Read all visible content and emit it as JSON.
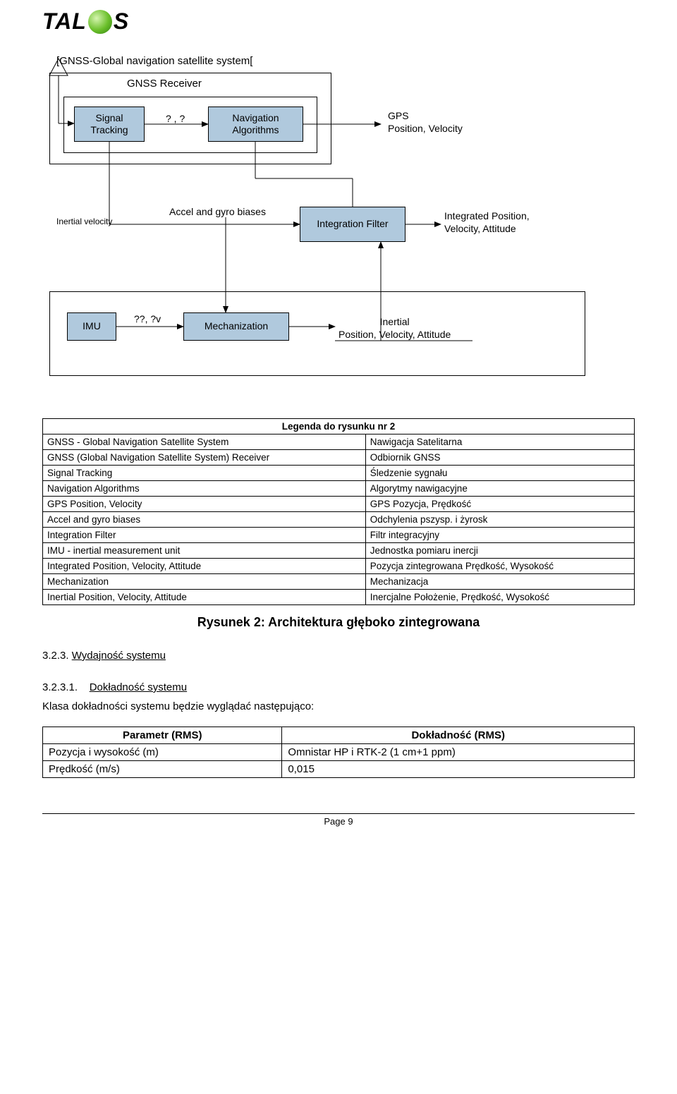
{
  "logo": {
    "left": "TAL",
    "right": "S"
  },
  "diagram": {
    "gnss_header": "[GNSS-Global navigation satellite system[",
    "gnss_receiver": "GNSS Receiver",
    "signal_tracking": "Signal\nTracking",
    "between_arrow_label": "? , ?",
    "nav_alg": "Navigation\nAlgorithms",
    "gps_out": "GPS\nPosition, Velocity",
    "inertial_velocity": "Inertial velocity",
    "accel_gyro": "Accel and gyro biases",
    "integration_filter": "Integration Filter",
    "integrated_out": "Integrated Position,\nVelocity, Attitude",
    "imu": "IMU",
    "imu_label": "??, ?v",
    "mechanization": "Mechanization",
    "inertial_out": "Inertial\nPosition, Velocity, Attitude",
    "colors": {
      "box_fill": "#b0c9dd",
      "border": "#000000",
      "arrow": "#000000",
      "background": "#ffffff"
    }
  },
  "legend": {
    "title": "Legenda do rysunku nr 2",
    "rows": [
      [
        "GNSS - Global Navigation Satellite System",
        "Nawigacja Satelitarna"
      ],
      [
        "GNSS  (Global Navigation Satellite System) Receiver",
        "Odbiornik GNSS"
      ],
      [
        "Signal Tracking",
        "Śledzenie sygnału"
      ],
      [
        "Navigation Algorithms",
        "Algorytmy nawigacyjne"
      ],
      [
        "GPS Position, Velocity",
        "GPS   Pozycja, Prędkość"
      ],
      [
        "Accel and gyro biases",
        "Odchylenia pszysp. i żyrosk"
      ],
      [
        "Integration Filter",
        "Filtr integracyjny"
      ],
      [
        "IMU - inertial measurement unit",
        "Jednostka pomiaru inercji"
      ],
      [
        "Integrated Position, Velocity, Attitude",
        "Pozycja zintegrowana Prędkość, Wysokość"
      ],
      [
        "Mechanization",
        "Mechanizacja"
      ],
      [
        "Inertial Position, Velocity, Attitude",
        "Inercjalne  Położenie, Prędkość, Wysokość"
      ]
    ]
  },
  "figure_caption": "Rysunek 2: Architektura głęboko zintegrowana",
  "section1": {
    "num": "3.2.3.",
    "title": "Wydajność systemu"
  },
  "section2": {
    "num": "3.2.3.1.",
    "title": "Dokładność systemu"
  },
  "body_line": "Klasa dokładności systemu będzie wyglądać następująco:",
  "param_table": {
    "headers": [
      "Parametr (RMS)",
      "Dokładność (RMS)"
    ],
    "rows": [
      [
        "Pozycja i wysokość (m)",
        "Omnistar HP i RTK-2 (1 cm+1 ppm)"
      ],
      [
        "Prędkość (m/s)",
        "0,015"
      ]
    ]
  },
  "page_footer": "Page 9"
}
